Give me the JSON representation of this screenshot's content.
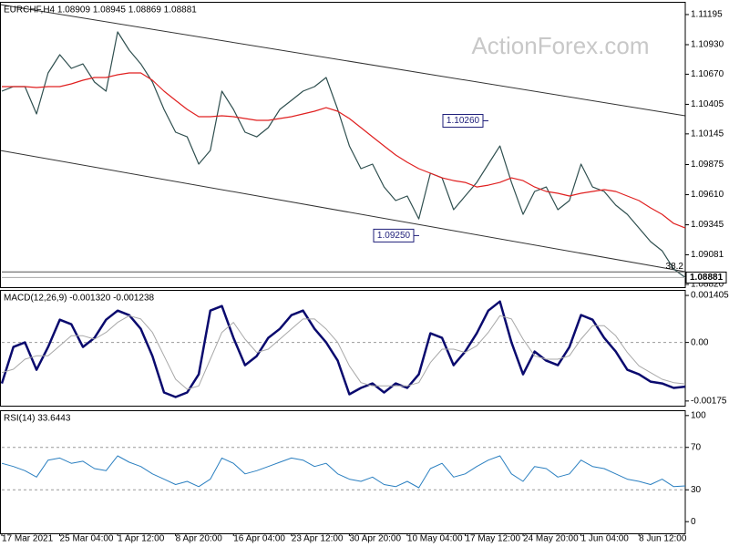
{
  "chart_data": [
    {
      "type": "line",
      "title": "EURCHF,H4  1.08909 1.08945 1.08869 1.08881",
      "watermark": "ActionForex.com",
      "ylim": [
        1.08796,
        1.11307
      ],
      "yticks": [
        1.11195,
        {
          "value": 1.1093,
          "label": "1.10930"
        },
        {
          "value": 1.1067,
          "label": "1.10670"
        },
        1.10405,
        1.10145,
        1.09875,
        {
          "value": 1.0961,
          "label": "1.09610"
        },
        1.09345,
        1.09081,
        {
          "value": 1.0882,
          "label": "1.08820"
        }
      ],
      "series": [
        {
          "color": "#2f4f4f",
          "values": [
            1.10521,
            1.10561,
            1.10561,
            1.1032,
            1.10681,
            1.10842,
            1.10721,
            1.10761,
            1.10601,
            1.10521,
            1.11042,
            1.10882,
            1.10761,
            1.10601,
            1.1036,
            1.1016,
            1.10119,
            1.09879,
            1.09999,
            1.10521,
            1.1036,
            1.1016,
            1.10119,
            1.102,
            1.1036,
            1.1044,
            1.10521,
            1.10561,
            1.10641,
            1.1036,
            1.10039,
            1.09839,
            1.09879,
            1.09678,
            1.09558,
            1.09598,
            1.09397,
            1.09799,
            1.09758,
            1.09478,
            1.09598,
            1.09718,
            1.09879,
            1.10039,
            1.09718,
            1.09437,
            1.09638,
            1.09678,
            1.09478,
            1.09558,
            1.09879,
            1.09678,
            1.09638,
            1.09518,
            1.09437,
            1.09317,
            1.09197,
            1.09116,
            1.08956,
            1.08881
          ]
        },
        {
          "color": "#e02020",
          "values": [
            1.10561,
            1.10561,
            1.10561,
            1.10553,
            1.10561,
            1.10561,
            1.10585,
            1.10617,
            1.10641,
            1.10641,
            1.10665,
            1.10681,
            1.10681,
            1.10617,
            1.10521,
            1.1044,
            1.1036,
            1.10296,
            1.10296,
            1.10304,
            1.10296,
            1.1028,
            1.10264,
            1.10264,
            1.1028,
            1.10296,
            1.1032,
            1.10344,
            1.10376,
            1.10344,
            1.1028,
            1.102,
            1.10119,
            1.10039,
            1.09959,
            1.09895,
            1.09839,
            1.09799,
            1.09758,
            1.09734,
            1.09718,
            1.09678,
            1.09694,
            1.09718,
            1.09758,
            1.09734,
            1.09678,
            1.09638,
            1.09622,
            1.09598,
            1.09622,
            1.09638,
            1.09654,
            1.09638,
            1.09598,
            1.09558,
            1.09494,
            1.09437,
            1.09357,
            1.09317
          ]
        }
      ],
      "annotations": [
        {
          "value": 1.1026,
          "label": "1.10260"
        },
        {
          "value": 1.0925,
          "label": "1.09250"
        }
      ],
      "fib_level": {
        "value": 1.0893,
        "label": "38.2"
      },
      "last_price": 1.08881
    },
    {
      "type": "line",
      "title": "MACD(12,26,9) -0.001320 -0.001238",
      "ylim": [
        -0.00189,
        0.00157
      ],
      "yticks": [
        0.001405,
        {
          "value": 0,
          "label": "0.00"
        },
        -0.00175
      ],
      "series": [
        {
          "color": "#0a0a6e",
          "values": [
            -0.001224,
            -0.000136,
            0,
            -0.000816,
            -0.000136,
            0.00068,
            0.000544,
            -0.000136,
            0.000136,
            0.00068,
            0.000952,
            0.000816,
            0.000408,
            -0.000408,
            -0.001496,
            -0.00163,
            -0.001496,
            -0.000952,
            0.000952,
            0.001088,
            0.000136,
            -0.00068,
            -0.000408,
            0.000136,
            0.000408,
            0.000816,
            0.000952,
            0.000408,
            0,
            -0.000544,
            -0.00155,
            -0.00136,
            -0.001224,
            -0.001496,
            -0.001224,
            -0.00136,
            -0.000952,
            0.000272,
            0.000136,
            -0.00068,
            -0.000272,
            0.000272,
            0.000952,
            0.001224,
            0,
            -0.000952,
            -0.000272,
            -0.000544,
            -0.00068,
            -0.000136,
            0.00082,
            0.00068,
            0.000136,
            -0.000272,
            -0.000816,
            -0.000952,
            -0.00117,
            -0.001224,
            -0.00136,
            -0.00132
          ]
        },
        {
          "color": "#a8a8a8",
          "values": [
            -0.0009,
            -0.0008,
            -0.0005,
            -0.0004,
            -0.0004,
            -0.0001,
            0.0002,
            0.0002,
            0.0001,
            0.0003,
            0.0006,
            0.0008,
            0.0007,
            0.0003,
            -0.0004,
            -0.0011,
            -0.0014,
            -0.0013,
            -0.0005,
            0.0003,
            0.0006,
            0.0001,
            -0.0003,
            -0.0002,
            0.0001,
            0.0004,
            0.0007,
            0.0007,
            0.0004,
            0,
            -0.0007,
            -0.0012,
            -0.0013,
            -0.0013,
            -0.0013,
            -0.0013,
            -0.0012,
            -0.0006,
            -0.0002,
            -0.0002,
            -0.0003,
            -0.0001,
            0.0003,
            0.0008,
            0.0007,
            0.0001,
            -0.0004,
            -0.0005,
            -0.0005,
            -0.0004,
            0.0001,
            0.0005,
            0.0005,
            0.0002,
            -0.0003,
            -0.0007,
            -0.0009,
            -0.0011,
            -0.0012,
            -0.001238
          ]
        }
      ]
    },
    {
      "type": "line",
      "title": "RSI(14) 33.6443",
      "ylim": [
        -11,
        105
      ],
      "yticks": [
        100,
        70,
        30,
        0
      ],
      "categories": [
        "17 Mar 2021",
        null,
        null,
        null,
        null,
        "25 Mar 04:00",
        null,
        null,
        null,
        null,
        "1 Apr 12:00",
        null,
        null,
        null,
        null,
        "8 Apr 20:00",
        null,
        null,
        null,
        null,
        "16 Apr 04:00",
        null,
        null,
        null,
        null,
        "23 Apr 12:00",
        null,
        null,
        null,
        null,
        "30 Apr 20:00",
        null,
        null,
        null,
        null,
        "10 May 04:00",
        null,
        null,
        null,
        null,
        "17 May 12:00",
        null,
        null,
        null,
        null,
        "24 May 20:00",
        null,
        null,
        null,
        null,
        "1 Jun 04:00",
        null,
        null,
        null,
        null,
        "8 Jun 12:00",
        null,
        null,
        null,
        null
      ],
      "series": [
        {
          "color": "#2a7fc0",
          "values": [
            55,
            52,
            48,
            42,
            58,
            60,
            55,
            57,
            50,
            48,
            62,
            56,
            52,
            45,
            40,
            35,
            38,
            33,
            40,
            60,
            55,
            45,
            48,
            52,
            56,
            60,
            58,
            52,
            55,
            45,
            40,
            38,
            42,
            35,
            33,
            38,
            32,
            50,
            55,
            42,
            45,
            52,
            58,
            62,
            45,
            38,
            52,
            50,
            42,
            45,
            58,
            52,
            50,
            45,
            40,
            38,
            35,
            40,
            33,
            33.6443
          ]
        }
      ]
    }
  ]
}
